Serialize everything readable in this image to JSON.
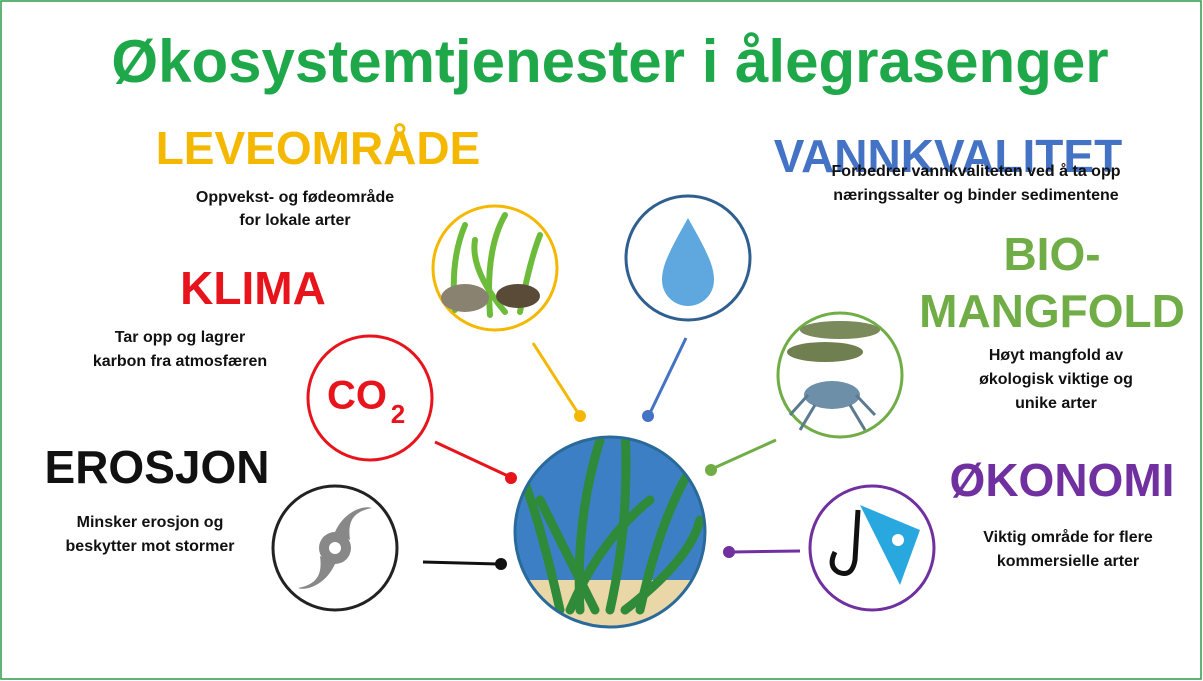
{
  "title": "Økosystemtjenester i ålegrasenger",
  "sections": [
    {
      "heading": [
        "LEVEOMRÅDE"
      ],
      "description": [
        "Oppvekst- og fødeområde",
        "for lokale arter"
      ]
    },
    {
      "heading": [
        "VANNKVALITET"
      ],
      "description": [
        "Forbedrer vannkvaliteten ved å ta opp",
        "næringssalter og binder sedimentene"
      ]
    },
    {
      "heading": [
        "KLIMA"
      ],
      "description": [
        "Tar opp og lagrer",
        "karbon fra atmosfæren"
      ]
    },
    {
      "heading": [
        "BIO-",
        "MANGFOLD"
      ],
      "description": [
        "Høyt mangfold av",
        "økologisk viktige og",
        "unike arter"
      ]
    },
    {
      "heading": [
        "EROSJON"
      ],
      "description": [
        "Minsker erosjon og",
        "beskytter mot stormer"
      ]
    },
    {
      "heading": [
        "ØKONOMI"
      ],
      "description": [
        "Viktig område for flere",
        "kommersielle arter"
      ]
    }
  ],
  "co2_icon": {
    "main": "CO",
    "subscript": "2"
  }
}
